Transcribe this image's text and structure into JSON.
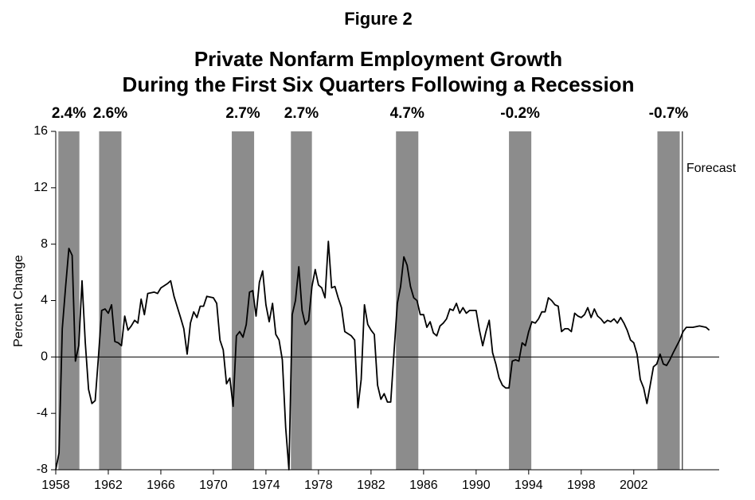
{
  "chart_data": {
    "type": "line",
    "title": "Figure 2",
    "subtitle": [
      "Private Nonfarm Employment Growth",
      "During the First Six Quarters Following a Recession"
    ],
    "y_label": "Percent Change",
    "color": "#000000",
    "band_color": "#8c8c8c",
    "xlim": [
      1958,
      2008.5
    ],
    "ylim": [
      -8,
      16
    ],
    "xticks": [
      1958,
      1962,
      1966,
      1970,
      1974,
      1978,
      1982,
      1986,
      1990,
      1994,
      1998,
      2002
    ],
    "yticks": [
      -8,
      -4,
      0,
      4,
      8,
      12,
      16
    ],
    "zero_line": true,
    "forecast": {
      "x": 2005.7,
      "label": "Forecast"
    },
    "bands": [
      {
        "start": 1958.2,
        "end": 1959.8,
        "label": "2.4%"
      },
      {
        "start": 1961.3,
        "end": 1963.0,
        "label": "2.6%"
      },
      {
        "start": 1971.4,
        "end": 1973.1,
        "label": "2.7%"
      },
      {
        "start": 1975.9,
        "end": 1977.5,
        "label": "2.7%"
      },
      {
        "start": 1983.9,
        "end": 1985.6,
        "label": "4.7%"
      },
      {
        "start": 1992.5,
        "end": 1994.2,
        "label": "-0.2%"
      },
      {
        "start": 2003.8,
        "end": 2005.5,
        "label": "-0.7%"
      }
    ],
    "x": [
      1958.0,
      1958.25,
      1958.5,
      1958.75,
      1959.0,
      1959.25,
      1959.5,
      1959.75,
      1960.0,
      1960.25,
      1960.5,
      1960.75,
      1961.0,
      1961.25,
      1961.5,
      1961.75,
      1962.0,
      1962.25,
      1962.5,
      1962.75,
      1963.0,
      1963.25,
      1963.5,
      1963.75,
      1964.0,
      1964.25,
      1964.5,
      1964.75,
      1965.0,
      1965.5,
      1965.75,
      1966.0,
      1966.5,
      1966.75,
      1967.0,
      1967.5,
      1967.75,
      1968.0,
      1968.25,
      1968.5,
      1968.75,
      1969.0,
      1969.25,
      1969.5,
      1970.0,
      1970.25,
      1970.5,
      1970.75,
      1971.0,
      1971.25,
      1971.5,
      1971.75,
      1972.0,
      1972.25,
      1972.5,
      1972.75,
      1973.0,
      1973.25,
      1973.5,
      1973.75,
      1974.0,
      1974.25,
      1974.5,
      1974.75,
      1975.0,
      1975.25,
      1975.5,
      1975.75,
      1976.0,
      1976.25,
      1976.5,
      1976.75,
      1977.0,
      1977.25,
      1977.5,
      1977.75,
      1978.0,
      1978.25,
      1978.5,
      1978.75,
      1979.0,
      1979.25,
      1979.5,
      1979.75,
      1980.0,
      1980.5,
      1980.75,
      1981.0,
      1981.25,
      1981.5,
      1981.75,
      1982.0,
      1982.25,
      1982.5,
      1982.75,
      1983.0,
      1983.25,
      1983.5,
      1983.75,
      1984.0,
      1984.25,
      1984.5,
      1984.75,
      1985.0,
      1985.25,
      1985.5,
      1985.75,
      1986.0,
      1986.25,
      1986.5,
      1986.75,
      1987.0,
      1987.25,
      1987.5,
      1987.75,
      1988.0,
      1988.25,
      1988.5,
      1988.75,
      1989.0,
      1989.25,
      1989.5,
      1990.0,
      1990.25,
      1990.5,
      1990.75,
      1991.0,
      1991.25,
      1991.5,
      1991.75,
      1992.0,
      1992.25,
      1992.5,
      1992.75,
      1993.0,
      1993.25,
      1993.5,
      1993.75,
      1994.0,
      1994.25,
      1994.5,
      1994.75,
      1995.0,
      1995.25,
      1995.5,
      1995.75,
      1996.0,
      1996.25,
      1996.5,
      1996.75,
      1997.0,
      1997.25,
      1997.5,
      1997.75,
      1998.0,
      1998.25,
      1998.5,
      1998.75,
      1999.0,
      1999.25,
      1999.5,
      1999.75,
      2000.0,
      2000.25,
      2000.5,
      2000.75,
      2001.0,
      2001.25,
      2001.5,
      2001.75,
      2002.0,
      2002.25,
      2002.5,
      2002.75,
      2003.0,
      2003.25,
      2003.5,
      2003.75,
      2004.0,
      2004.25,
      2004.5,
      2004.75,
      2005.0,
      2005.5,
      2005.75,
      2006.0,
      2006.5,
      2007.0,
      2007.5,
      2007.75
    ],
    "values": [
      -8,
      -6.8,
      2,
      5,
      7.7,
      7.2,
      -0.3,
      0.8,
      5.4,
      1,
      -2.3,
      -3.3,
      -3.1,
      0,
      3.3,
      3.4,
      3.1,
      3.7,
      1.1,
      1,
      0.8,
      2.9,
      1.9,
      2.2,
      2.6,
      2.4,
      4.1,
      3,
      4.5,
      4.6,
      4.5,
      4.9,
      5.2,
      5.4,
      4.3,
      2.8,
      2,
      0.2,
      2.4,
      3.2,
      2.8,
      3.6,
      3.6,
      4.3,
      4.2,
      3.8,
      1.2,
      0.5,
      -1.9,
      -1.5,
      -3.5,
      1.5,
      1.8,
      1.4,
      2.3,
      4.6,
      4.7,
      2.9,
      5.3,
      6.1,
      3.7,
      2.5,
      3.8,
      1.6,
      1.2,
      -0.2,
      -5,
      -8,
      3,
      4,
      6.4,
      3.3,
      2.3,
      2.6,
      5,
      6.2,
      5.1,
      4.9,
      4.2,
      8.2,
      4.9,
      5,
      4.2,
      3.5,
      1.8,
      1.5,
      1.2,
      -3.6,
      -1.6,
      3.7,
      2.3,
      1.9,
      1.6,
      -2,
      -3,
      -2.6,
      -3.2,
      -3.2,
      0.3,
      3.8,
      5,
      7.1,
      6.5,
      5,
      4.2,
      4,
      3,
      3,
      2.1,
      2.5,
      1.7,
      1.5,
      2.2,
      2.4,
      2.7,
      3.4,
      3.3,
      3.8,
      3.1,
      3.5,
      3.1,
      3.3,
      3.3,
      1.9,
      0.8,
      1.8,
      2.6,
      0.3,
      -0.5,
      -1.5,
      -2,
      -2.2,
      -2.2,
      -0.3,
      -0.2,
      -0.3,
      1,
      0.8,
      1.8,
      2.5,
      2.4,
      2.7,
      3.2,
      3.2,
      4.2,
      4,
      3.7,
      3.6,
      1.8,
      2,
      2,
      1.8,
      3.1,
      2.9,
      2.8,
      3,
      3.5,
      2.8,
      3.4,
      2.9,
      2.7,
      2.4,
      2.6,
      2.5,
      2.7,
      2.4,
      2.8,
      2.4,
      1.9,
      1.2,
      1,
      0.2,
      -1.6,
      -2.2,
      -3.3,
      -2,
      -0.7,
      -0.5,
      0.2,
      -0.5,
      -0.6,
      -0.2,
      0.3,
      1.2,
      1.8,
      2.1,
      2.1,
      2.2,
      2.1,
      1.9
    ]
  }
}
